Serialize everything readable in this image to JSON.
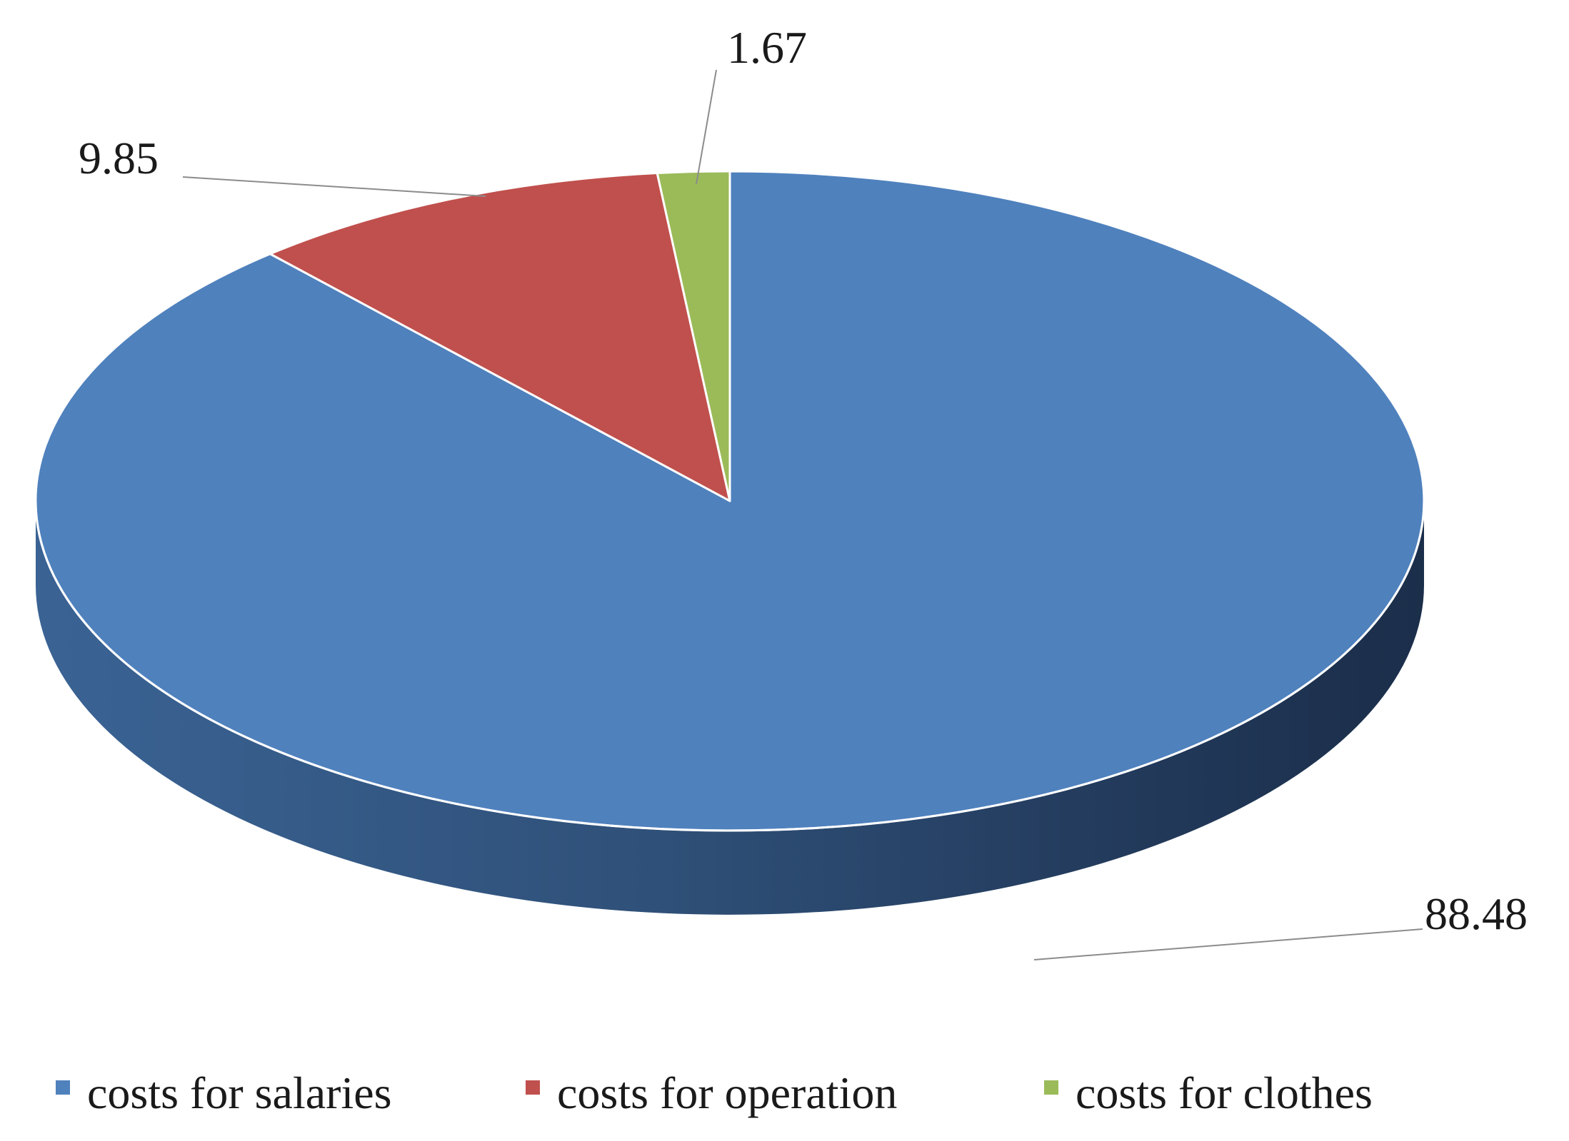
{
  "chart_data": {
    "type": "pie",
    "style": "3d",
    "title": "",
    "categories": [
      "costs for salaries",
      "costs for operation",
      "costs for clothes"
    ],
    "values": [
      88.48,
      9.85,
      1.67
    ],
    "data_labels": [
      "88.48",
      "9.85",
      "1.67"
    ],
    "colors": [
      "#4F81BD",
      "#C0504D",
      "#9BBB59"
    ],
    "legend": {
      "placement": "bottom",
      "entries": [
        "costs for salaries",
        "costs for operation",
        "costs for clothes"
      ]
    }
  }
}
